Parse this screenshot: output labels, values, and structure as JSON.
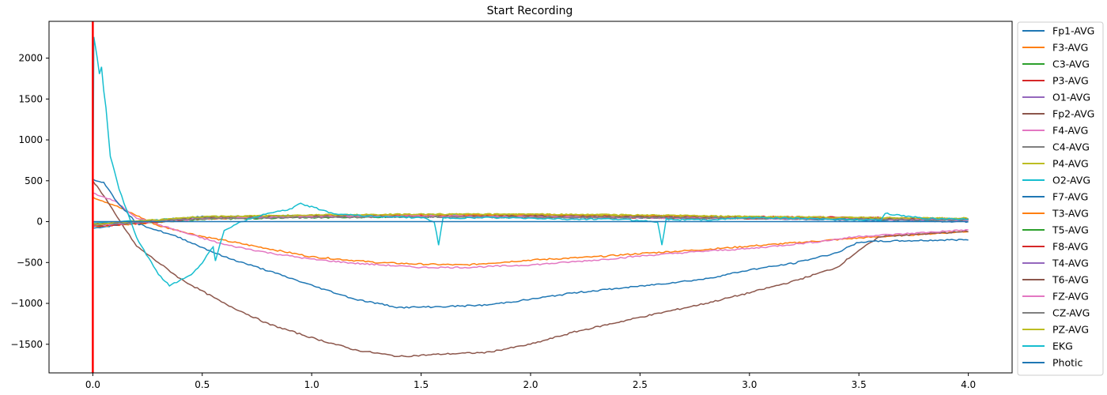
{
  "chart_data": {
    "type": "line",
    "title": "Start Recording",
    "xlabel": "",
    "ylabel": "",
    "xlim": [
      -0.2,
      4.2
    ],
    "ylim": [
      -1850,
      2450
    ],
    "xticks": [
      0.0,
      0.5,
      1.0,
      1.5,
      2.0,
      2.5,
      3.0,
      3.5,
      4.0
    ],
    "xtick_labels": [
      "0.0",
      "0.5",
      "1.0",
      "1.5",
      "2.0",
      "2.5",
      "3.0",
      "3.5",
      "4.0"
    ],
    "yticks": [
      -1500,
      -1000,
      -500,
      0,
      500,
      1000,
      1500,
      2000
    ],
    "ytick_labels": [
      "−1500",
      "−1000",
      "−500",
      "0",
      "500",
      "1000",
      "1500",
      "2000"
    ],
    "grid": false,
    "legend_position": "outside-right",
    "vertical_marker": {
      "x": 0.0,
      "color": "#ff0000"
    },
    "series": [
      {
        "name": "Fp1-AVG",
        "color": "#1f77b4",
        "points": [
          [
            0,
            -80
          ],
          [
            0.3,
            20
          ],
          [
            0.5,
            60
          ],
          [
            1.0,
            70
          ],
          [
            1.5,
            70
          ],
          [
            2.0,
            60
          ],
          [
            2.5,
            50
          ],
          [
            3.0,
            40
          ],
          [
            3.5,
            20
          ],
          [
            4.0,
            0
          ]
        ]
      },
      {
        "name": "F3-AVG",
        "color": "#ff7f0e",
        "points": [
          [
            0,
            300
          ],
          [
            0.1,
            200
          ],
          [
            0.3,
            -50
          ],
          [
            0.5,
            -180
          ],
          [
            0.8,
            -330
          ],
          [
            1.0,
            -430
          ],
          [
            1.3,
            -500
          ],
          [
            1.5,
            -520
          ],
          [
            1.7,
            -530
          ],
          [
            2.0,
            -470
          ],
          [
            2.3,
            -430
          ],
          [
            2.5,
            -390
          ],
          [
            2.8,
            -340
          ],
          [
            3.0,
            -300
          ],
          [
            3.5,
            -200
          ],
          [
            4.0,
            -120
          ]
        ]
      },
      {
        "name": "C3-AVG",
        "color": "#2ca02c",
        "points": [
          [
            0,
            -50
          ],
          [
            0.5,
            40
          ],
          [
            1.0,
            60
          ],
          [
            1.5,
            70
          ],
          [
            2.0,
            60
          ],
          [
            2.5,
            50
          ],
          [
            3.0,
            40
          ],
          [
            3.5,
            40
          ],
          [
            4.0,
            30
          ]
        ]
      },
      {
        "name": "P3-AVG",
        "color": "#d62728",
        "points": [
          [
            0,
            -40
          ],
          [
            0.5,
            50
          ],
          [
            1.0,
            70
          ],
          [
            1.5,
            80
          ],
          [
            2.0,
            80
          ],
          [
            2.5,
            70
          ],
          [
            3.0,
            60
          ],
          [
            3.5,
            50
          ],
          [
            4.0,
            20
          ]
        ]
      },
      {
        "name": "O1-AVG",
        "color": "#9467bd",
        "points": [
          [
            0,
            -30
          ],
          [
            0.5,
            50
          ],
          [
            1.0,
            70
          ],
          [
            1.5,
            80
          ],
          [
            2.0,
            70
          ],
          [
            2.5,
            60
          ],
          [
            3.0,
            50
          ],
          [
            3.5,
            40
          ],
          [
            4.0,
            30
          ]
        ]
      },
      {
        "name": "Fp2-AVG",
        "color": "#8c564b",
        "points": [
          [
            0,
            500
          ],
          [
            0.05,
            320
          ],
          [
            0.1,
            100
          ],
          [
            0.2,
            -300
          ],
          [
            0.4,
            -700
          ],
          [
            0.6,
            -1000
          ],
          [
            0.8,
            -1250
          ],
          [
            1.0,
            -1420
          ],
          [
            1.2,
            -1570
          ],
          [
            1.4,
            -1650
          ],
          [
            1.6,
            -1620
          ],
          [
            1.8,
            -1600
          ],
          [
            2.0,
            -1500
          ],
          [
            2.2,
            -1350
          ],
          [
            2.5,
            -1170
          ],
          [
            2.8,
            -1000
          ],
          [
            3.0,
            -870
          ],
          [
            3.2,
            -730
          ],
          [
            3.4,
            -560
          ],
          [
            3.5,
            -350
          ],
          [
            3.6,
            -180
          ],
          [
            4.0,
            -120
          ]
        ]
      },
      {
        "name": "F4-AVG",
        "color": "#e377c2",
        "points": [
          [
            0,
            350
          ],
          [
            0.1,
            250
          ],
          [
            0.2,
            50
          ],
          [
            0.4,
            -120
          ],
          [
            0.6,
            -280
          ],
          [
            0.8,
            -380
          ],
          [
            1.0,
            -460
          ],
          [
            1.2,
            -510
          ],
          [
            1.5,
            -560
          ],
          [
            1.7,
            -560
          ],
          [
            2.0,
            -530
          ],
          [
            2.3,
            -470
          ],
          [
            2.5,
            -420
          ],
          [
            2.8,
            -360
          ],
          [
            3.0,
            -330
          ],
          [
            3.3,
            -250
          ],
          [
            3.5,
            -180
          ],
          [
            3.7,
            -150
          ],
          [
            4.0,
            -100
          ]
        ]
      },
      {
        "name": "C4-AVG",
        "color": "#7f7f7f",
        "points": [
          [
            0,
            -40
          ],
          [
            0.5,
            40
          ],
          [
            1.0,
            60
          ],
          [
            1.5,
            60
          ],
          [
            2.0,
            50
          ],
          [
            2.5,
            50
          ],
          [
            3.0,
            40
          ],
          [
            3.5,
            30
          ],
          [
            4.0,
            20
          ]
        ]
      },
      {
        "name": "P4-AVG",
        "color": "#bcbd22",
        "points": [
          [
            0,
            -30
          ],
          [
            0.5,
            60
          ],
          [
            1.0,
            80
          ],
          [
            1.5,
            90
          ],
          [
            2.0,
            90
          ],
          [
            2.5,
            80
          ],
          [
            3.0,
            60
          ],
          [
            3.5,
            50
          ],
          [
            4.0,
            40
          ]
        ]
      },
      {
        "name": "O2-AVG",
        "color": "#17becf",
        "points": [
          [
            0,
            -20
          ],
          [
            0.5,
            50
          ],
          [
            1.0,
            70
          ],
          [
            1.5,
            80
          ],
          [
            2.0,
            70
          ],
          [
            2.5,
            60
          ],
          [
            3.0,
            50
          ],
          [
            3.5,
            30
          ],
          [
            4.0,
            20
          ]
        ]
      },
      {
        "name": "F7-AVG",
        "color": "#1f77b4",
        "points": [
          [
            0,
            520
          ],
          [
            0.05,
            480
          ],
          [
            0.1,
            280
          ],
          [
            0.2,
            -20
          ],
          [
            0.4,
            -200
          ],
          [
            0.6,
            -430
          ],
          [
            0.8,
            -600
          ],
          [
            1.0,
            -780
          ],
          [
            1.2,
            -950
          ],
          [
            1.4,
            -1050
          ],
          [
            1.6,
            -1040
          ],
          [
            1.8,
            -1020
          ],
          [
            2.0,
            -950
          ],
          [
            2.2,
            -870
          ],
          [
            2.5,
            -790
          ],
          [
            2.8,
            -700
          ],
          [
            3.0,
            -590
          ],
          [
            3.2,
            -510
          ],
          [
            3.4,
            -380
          ],
          [
            3.5,
            -250
          ],
          [
            3.6,
            -240
          ],
          [
            4.0,
            -220
          ]
        ]
      },
      {
        "name": "T3-AVG",
        "color": "#ff7f0e",
        "points": [
          [
            0,
            -60
          ],
          [
            0.5,
            30
          ],
          [
            1.0,
            70
          ],
          [
            1.5,
            80
          ],
          [
            2.0,
            80
          ],
          [
            2.5,
            70
          ],
          [
            3.0,
            50
          ],
          [
            3.5,
            30
          ],
          [
            4.0,
            20
          ]
        ]
      },
      {
        "name": "T5-AVG",
        "color": "#2ca02c",
        "points": [
          [
            0,
            -50
          ],
          [
            0.5,
            30
          ],
          [
            1.0,
            50
          ],
          [
            1.5,
            60
          ],
          [
            2.0,
            60
          ],
          [
            2.5,
            50
          ],
          [
            3.0,
            40
          ],
          [
            3.5,
            30
          ],
          [
            4.0,
            30
          ]
        ]
      },
      {
        "name": "F8-AVG",
        "color": "#d62728",
        "points": [
          [
            0,
            -60
          ],
          [
            0.5,
            40
          ],
          [
            1.0,
            60
          ],
          [
            1.5,
            70
          ],
          [
            2.0,
            60
          ],
          [
            2.5,
            50
          ],
          [
            3.0,
            40
          ],
          [
            3.5,
            50
          ],
          [
            4.0,
            30
          ]
        ]
      },
      {
        "name": "T4-AVG",
        "color": "#9467bd",
        "points": [
          [
            0,
            -40
          ],
          [
            0.5,
            40
          ],
          [
            1.0,
            60
          ],
          [
            1.5,
            60
          ],
          [
            2.0,
            60
          ],
          [
            2.5,
            50
          ],
          [
            3.0,
            40
          ],
          [
            3.5,
            30
          ],
          [
            4.0,
            20
          ]
        ]
      },
      {
        "name": "T6-AVG",
        "color": "#8c564b",
        "points": [
          [
            0,
            -30
          ],
          [
            0.5,
            50
          ],
          [
            1.0,
            70
          ],
          [
            1.5,
            70
          ],
          [
            2.0,
            70
          ],
          [
            2.5,
            60
          ],
          [
            3.0,
            50
          ],
          [
            3.5,
            40
          ],
          [
            4.0,
            20
          ]
        ]
      },
      {
        "name": "FZ-AVG",
        "color": "#e377c2",
        "points": [
          [
            0,
            -50
          ],
          [
            0.5,
            40
          ],
          [
            1.0,
            60
          ],
          [
            1.5,
            70
          ],
          [
            2.0,
            60
          ],
          [
            2.5,
            50
          ],
          [
            3.0,
            40
          ],
          [
            3.5,
            30
          ],
          [
            4.0,
            20
          ]
        ]
      },
      {
        "name": "CZ-AVG",
        "color": "#7f7f7f",
        "points": [
          [
            0,
            -40
          ],
          [
            0.5,
            40
          ],
          [
            1.0,
            50
          ],
          [
            1.5,
            60
          ],
          [
            2.0,
            50
          ],
          [
            2.5,
            50
          ],
          [
            3.0,
            40
          ],
          [
            3.5,
            30
          ],
          [
            4.0,
            20
          ]
        ]
      },
      {
        "name": "PZ-AVG",
        "color": "#bcbd22",
        "points": [
          [
            0,
            -30
          ],
          [
            0.5,
            60
          ],
          [
            1.0,
            80
          ],
          [
            1.5,
            90
          ],
          [
            2.0,
            90
          ],
          [
            2.5,
            80
          ],
          [
            3.0,
            60
          ],
          [
            3.5,
            50
          ],
          [
            4.0,
            40
          ]
        ]
      },
      {
        "name": "EKG",
        "color": "#17becf",
        "points": [
          [
            0,
            0
          ],
          [
            0.005,
            2260
          ],
          [
            0.02,
            2000
          ],
          [
            0.03,
            1800
          ],
          [
            0.04,
            1900
          ],
          [
            0.05,
            1600
          ],
          [
            0.06,
            1400
          ],
          [
            0.08,
            800
          ],
          [
            0.12,
            400
          ],
          [
            0.2,
            -200
          ],
          [
            0.3,
            -650
          ],
          [
            0.35,
            -780
          ],
          [
            0.45,
            -650
          ],
          [
            0.5,
            -500
          ],
          [
            0.55,
            -300
          ],
          [
            0.56,
            -480
          ],
          [
            0.6,
            -100
          ],
          [
            0.7,
            20
          ],
          [
            0.8,
            100
          ],
          [
            0.9,
            150
          ],
          [
            0.95,
            220
          ],
          [
            1.0,
            180
          ],
          [
            1.1,
            100
          ],
          [
            1.3,
            60
          ],
          [
            1.5,
            50
          ],
          [
            1.56,
            0
          ],
          [
            1.58,
            -280
          ],
          [
            1.6,
            40
          ],
          [
            1.8,
            50
          ],
          [
            2.0,
            40
          ],
          [
            2.2,
            30
          ],
          [
            2.4,
            30
          ],
          [
            2.58,
            0
          ],
          [
            2.6,
            -280
          ],
          [
            2.62,
            30
          ],
          [
            2.8,
            20
          ],
          [
            3.0,
            50
          ],
          [
            3.2,
            40
          ],
          [
            3.4,
            30
          ],
          [
            3.6,
            20
          ],
          [
            3.62,
            100
          ],
          [
            3.8,
            40
          ],
          [
            4.0,
            30
          ]
        ]
      },
      {
        "name": "Photic",
        "color": "#1f77b4",
        "points": [
          [
            0,
            0
          ],
          [
            4.0,
            0
          ]
        ]
      }
    ]
  }
}
